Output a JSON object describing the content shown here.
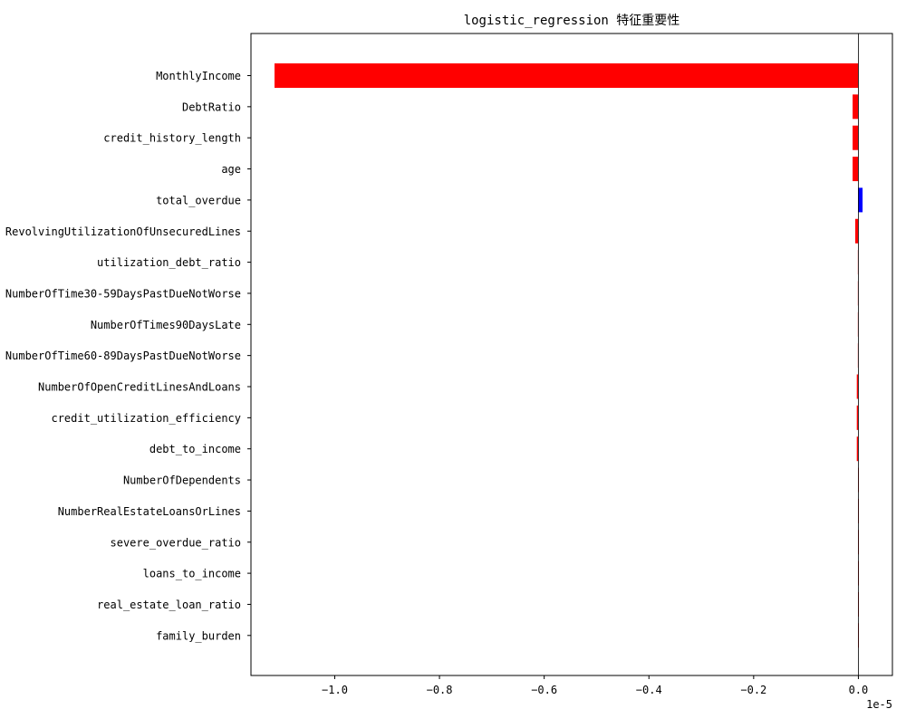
{
  "chart_data": {
    "type": "bar",
    "orientation": "horizontal",
    "title": "logistic_regression 特征重要性",
    "xlabel": "",
    "ylabel": "",
    "x_scale_label": "1e-5",
    "x_ticks": [
      -1.0,
      -0.8,
      -0.6,
      -0.4,
      -0.2,
      0.0
    ],
    "x_tick_labels": [
      "−1.0",
      "−0.8",
      "−0.6",
      "−0.4",
      "−0.2",
      "0.0"
    ],
    "xlim": [
      -1.16,
      0.065
    ],
    "grid": false,
    "legend": false,
    "zero_line": true,
    "colors": {
      "negative": "#ff0000",
      "positive": "#0000ff",
      "zero_line": "#000000"
    },
    "categories": [
      "MonthlyIncome",
      "DebtRatio",
      "credit_history_length",
      "age",
      "total_overdue",
      "RevolvingUtilizationOfUnsecuredLines",
      "utilization_debt_ratio",
      "NumberOfTime30-59DaysPastDueNotWorse",
      "NumberOfTimes90DaysLate",
      "NumberOfTime60-89DaysPastDueNotWorse",
      "NumberOfOpenCreditLinesAndLoans",
      "credit_utilization_efficiency",
      "debt_to_income",
      "NumberOfDependents",
      "NumberRealEstateLoansOrLines",
      "severe_overdue_ratio",
      "loans_to_income",
      "real_estate_loan_ratio",
      "family_burden"
    ],
    "values": [
      -1.115,
      -0.011,
      -0.011,
      -0.011,
      0.008,
      -0.006,
      -0.001,
      -0.001,
      -0.001,
      -0.001,
      -0.003,
      -0.003,
      -0.003,
      -0.0002,
      -0.0002,
      -0.0001,
      -0.0001,
      -0.0001,
      -0.0001
    ]
  }
}
